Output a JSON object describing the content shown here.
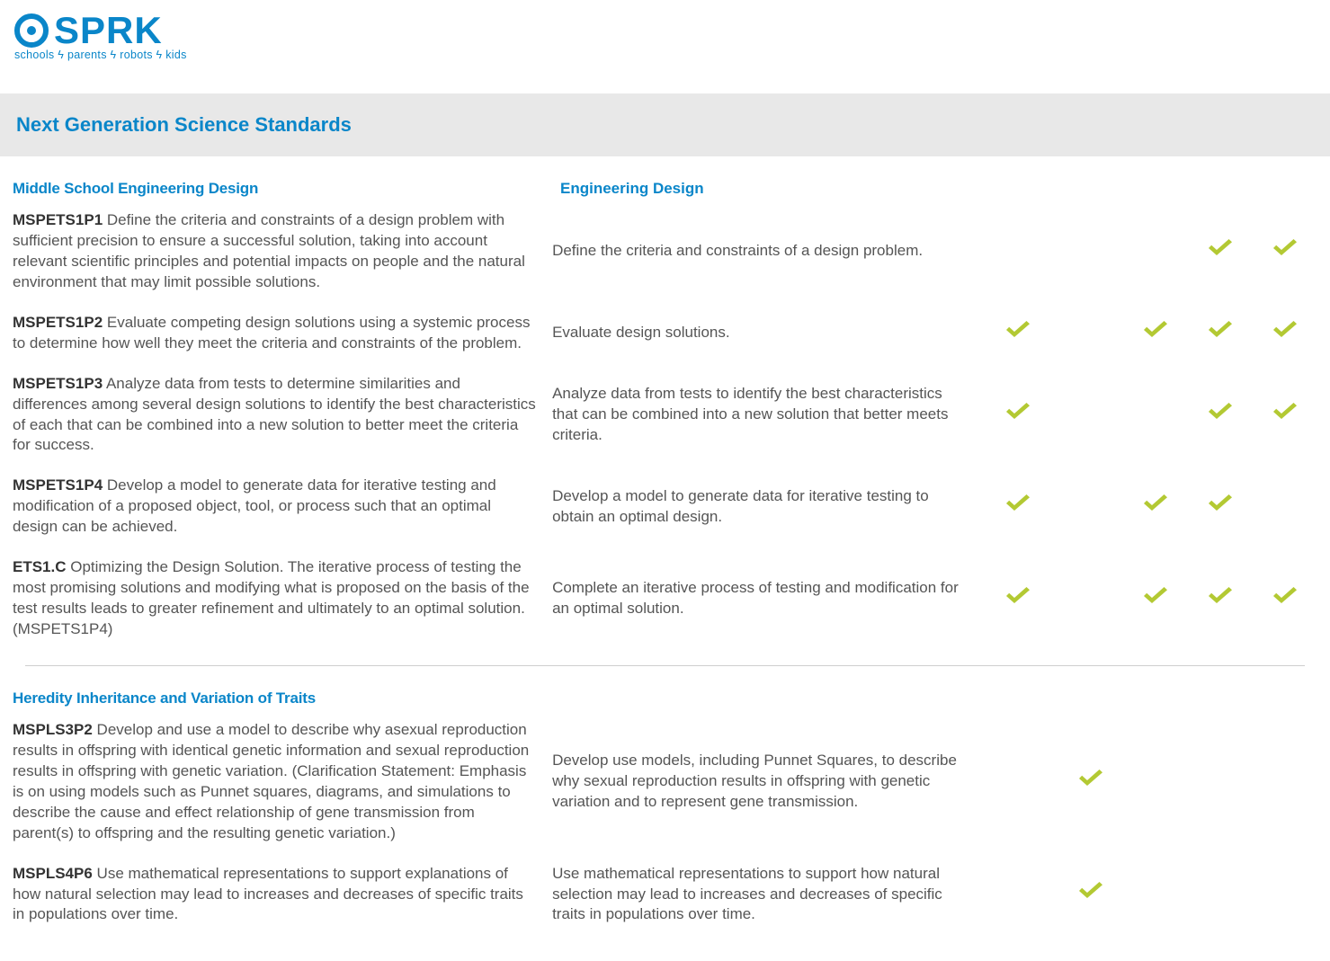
{
  "logo": {
    "word": "SPRK",
    "tagline_parts": [
      "schools",
      "parents",
      "robots",
      "kids"
    ],
    "color": "#0a86c9"
  },
  "band_title": "Next Generation Science Standards",
  "check_color": "#b3c933",
  "n_check_cols": 5,
  "sections": [
    {
      "left_title": "Middle School Engineering Design",
      "right_title": "Engineering Design",
      "rows": [
        {
          "code": "MSPETS1P1",
          "full": "Define the criteria and constraints of a design problem with sufficient precision to ensure a successful solution, taking into account relevant scientific principles and potential impacts on people and the natural environment that may limit possible solutions.",
          "summary": "Define the criteria and constraints of a design problem.",
          "checks": [
            false,
            false,
            false,
            true,
            true
          ]
        },
        {
          "code": "MSPETS1P2",
          "full": "Evaluate competing design solutions using a systemic process to determine how well they meet the criteria and constraints of the problem.",
          "summary": "Evaluate design solutions.",
          "checks": [
            true,
            false,
            true,
            true,
            true
          ]
        },
        {
          "code": "MSPETS1P3",
          "full": "Analyze data from tests to determine similarities and differences among several design solutions to identify the best characteristics of each that can be combined into a new solution to better meet the criteria for success.",
          "summary": "Analyze data from tests to identify the best characteristics that can be combined into a new solution that better meets criteria.",
          "checks": [
            true,
            false,
            false,
            true,
            true
          ]
        },
        {
          "code": "MSPETS1P4",
          "full": "Develop a model to generate data for iterative testing and modification of a proposed object, tool, or process such that an optimal design can be achieved.",
          "summary": "Develop a model to generate data for iterative testing to obtain an optimal design.",
          "checks": [
            true,
            false,
            true,
            true,
            false
          ]
        },
        {
          "code": "ETS1.C",
          "full": "Optimizing the Design Solution. The iterative process of testing the most promising solutions and modifying what is proposed on the basis of the test results leads to greater refinement and ultimately to an optimal solution. (MSPETS1P4)",
          "summary": "Complete an iterative process of testing and modification for an optimal solution.",
          "checks": [
            true,
            false,
            true,
            true,
            true
          ]
        }
      ]
    },
    {
      "left_title": "Heredity Inheritance and Variation of Traits",
      "right_title": "",
      "rows": [
        {
          "code": "MSPLS3P2",
          "full": "Develop and use a model to describe why asexual reproduction results in offspring with identical genetic information and sexual reproduction results in offspring with genetic variation. (Clarification Statement: Emphasis is on using models such as Punnet squares, diagrams, and simulations to describe the cause and effect relationship of gene transmission from parent(s) to offspring and the resulting genetic variation.)",
          "summary": "Develop use models, including Punnet Squares, to describe why sexual reproduction results in offspring with genetic variation and to represent gene transmission.",
          "checks": [
            false,
            true,
            false,
            false,
            false
          ]
        },
        {
          "code": "MSPLS4P6",
          "full": "Use mathematical representations to support explanations of how natural selection may lead to increases and decreases of specific traits in populations over time.",
          "summary": "Use mathematical representations to support how natural selection may lead to increases and decreases of specific traits in populations over time.",
          "checks": [
            false,
            true,
            false,
            false,
            false
          ]
        }
      ]
    }
  ]
}
